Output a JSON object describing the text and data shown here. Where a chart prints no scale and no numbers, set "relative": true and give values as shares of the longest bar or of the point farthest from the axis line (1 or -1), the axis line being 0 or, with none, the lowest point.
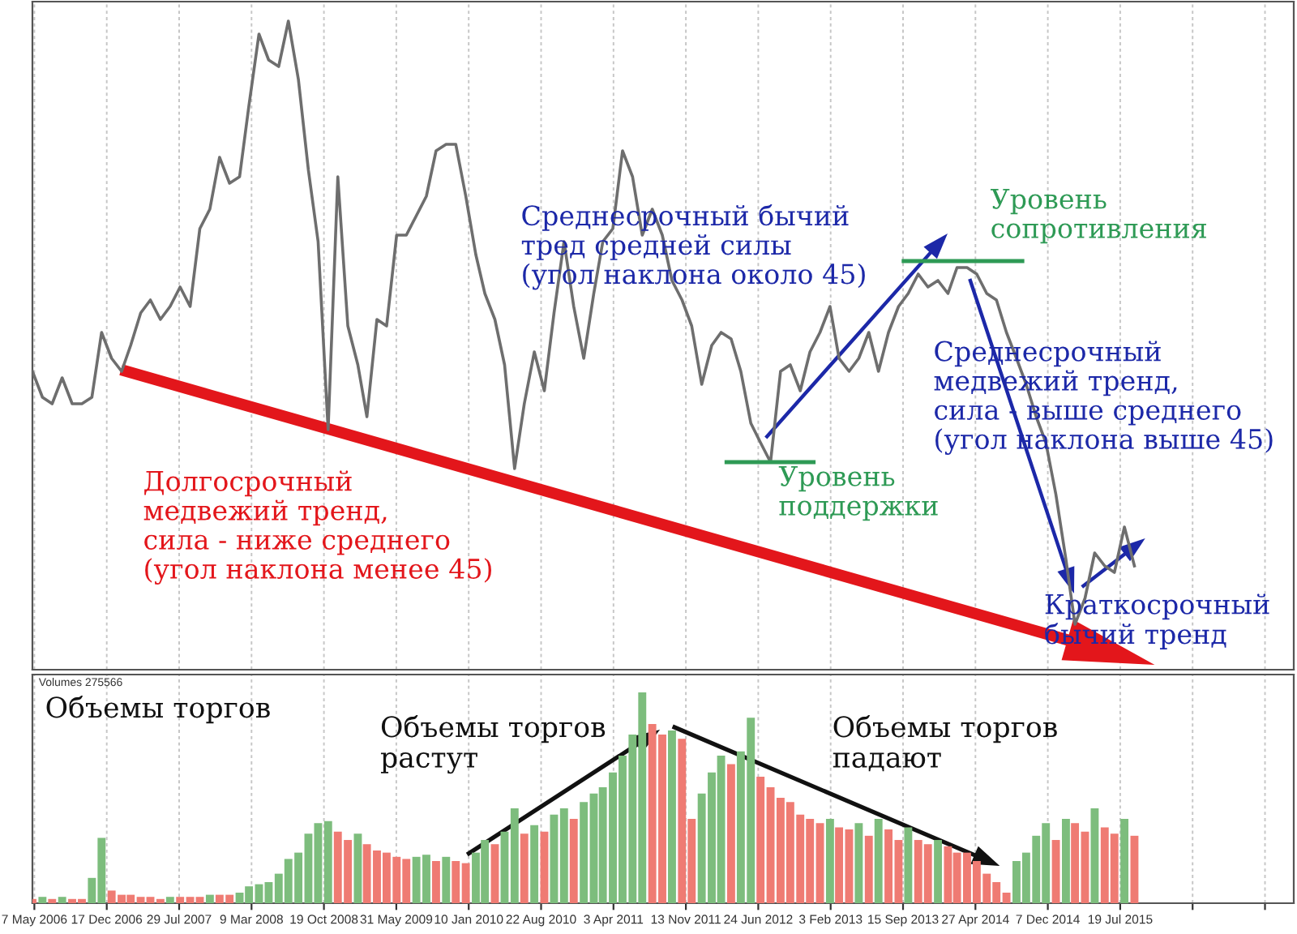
{
  "chart_data": [
    {
      "type": "line",
      "relative": true,
      "tick_labels": false,
      "grid": "x",
      "annotations": [
        "Долгосрочный\nмедвежий тренд,\nсила - ниже среднего\n(угол наклона менее 45)",
        "Среднесрочный бычий\nтред средней силы\n(угол наклона около 45)",
        "Среднесрочный\nмедвежий тренд,\nсила - выше среднего\n(угол наклона выше 45)",
        "Краткосрочный\nбычий тренд"
      ],
      "xlim": [
        "2006-05-01",
        "2017-01-06"
      ],
      "x": [
        "2006-05",
        "2006-06",
        "2006-07",
        "2006-08",
        "2006-09",
        "2006-10",
        "2006-11",
        "2006-12",
        "2007-01",
        "2007-02",
        "2007-03",
        "2007-04",
        "2007-05",
        "2007-06",
        "2007-07",
        "2007-08",
        "2007-09",
        "2007-10",
        "2007-11",
        "2007-12",
        "2008-01",
        "2008-02",
        "2008-03",
        "2008-04",
        "2008-05",
        "2008-06",
        "2008-07",
        "2008-08",
        "2008-09",
        "2008-10",
        "2008-11",
        "2008-12",
        "2009-01",
        "2009-02",
        "2009-03",
        "2009-04",
        "2009-05",
        "2009-06",
        "2009-07",
        "2009-08",
        "2009-09",
        "2009-10",
        "2009-11",
        "2009-12",
        "2010-01",
        "2010-02",
        "2010-03",
        "2010-04",
        "2010-05",
        "2010-06",
        "2010-07",
        "2010-08",
        "2010-09",
        "2010-10",
        "2010-11",
        "2010-12",
        "2011-01",
        "2011-02",
        "2011-03",
        "2011-04",
        "2011-05",
        "2011-06",
        "2011-07",
        "2011-08",
        "2011-09",
        "2011-10",
        "2011-11",
        "2011-12",
        "2012-01",
        "2012-02",
        "2012-03",
        "2012-04",
        "2012-05",
        "2012-06",
        "2012-07",
        "2012-08",
        "2012-09",
        "2012-10",
        "2012-11",
        "2012-12",
        "2013-01",
        "2013-02",
        "2013-03",
        "2013-04",
        "2013-05",
        "2013-06",
        "2013-07",
        "2013-08",
        "2013-09",
        "2013-10",
        "2013-11",
        "2013-12",
        "2014-01",
        "2014-02",
        "2014-03",
        "2014-04",
        "2014-05",
        "2014-06",
        "2014-07",
        "2014-08",
        "2014-09",
        "2014-10",
        "2014-11",
        "2014-12",
        "2015-01",
        "2015-02",
        "2015-03",
        "2015-04",
        "2015-05",
        "2015-06",
        "2015-07",
        "2015-08",
        "2015-09"
      ],
      "series": [
        {
          "color": "#6e6e6e",
          "values": [
            0.46,
            0.42,
            0.41,
            0.45,
            0.41,
            0.41,
            0.42,
            0.52,
            0.48,
            0.46,
            0.5,
            0.55,
            0.57,
            0.54,
            0.56,
            0.59,
            0.56,
            0.68,
            0.71,
            0.79,
            0.75,
            0.76,
            0.87,
            0.98,
            0.94,
            0.93,
            1.0,
            0.91,
            0.77,
            0.66,
            0.37,
            0.76,
            0.53,
            0.47,
            0.39,
            0.54,
            0.53,
            0.67,
            0.67,
            0.7,
            0.73,
            0.8,
            0.81,
            0.81,
            0.73,
            0.64,
            0.58,
            0.54,
            0.47,
            0.31,
            0.41,
            0.49,
            0.43,
            0.55,
            0.66,
            0.56,
            0.48,
            0.58,
            0.66,
            0.68,
            0.8,
            0.76,
            0.67,
            0.71,
            0.67,
            0.6,
            0.57,
            0.53,
            0.44,
            0.5,
            0.52,
            0.51,
            0.46,
            0.38,
            0.35,
            0.32,
            0.46,
            0.47,
            0.43,
            0.49,
            0.52,
            0.56,
            0.48,
            0.46,
            0.48,
            0.52,
            0.46,
            0.52,
            0.56,
            0.58,
            0.61,
            0.59,
            0.6,
            0.58,
            0.62,
            0.62,
            0.61,
            0.58,
            0.57,
            0.52,
            0.48,
            0.44,
            0.39,
            0.35,
            0.27,
            0.17,
            0.07,
            0.11,
            0.18,
            0.16,
            0.15,
            0.22,
            0.16
          ]
        },
        {
          "name": "Уровень\nподдержки",
          "color": "#2e9a55",
          "x": [
            "2012-03-18",
            "2012-12-12"
          ],
          "values": [
            0.32,
            0.32
          ]
        },
        {
          "name": "Уровень\nсопротивления",
          "color": "#2e9a55",
          "x": [
            "2013-09-17",
            "2014-09-19"
          ],
          "values": [
            0.63,
            0.63
          ]
        }
      ]
    },
    {
      "type": "bar",
      "relative": true,
      "tick_labels": "x",
      "grid": "x",
      "title": "Volumes 275566",
      "annotations": [
        "Объемы торгов",
        "Объемы торгов\nрастут",
        "Объемы торгов\nпадают"
      ],
      "xlim": [
        "2006-05-01",
        "2017-01-06"
      ],
      "xticks": [
        {
          "value": "2006-05-07",
          "label": "7 May 2006"
        },
        {
          "value": "2006-12-17",
          "label": "17 Dec 2006"
        },
        {
          "value": "2007-07-29",
          "label": "29 Jul 2007"
        },
        {
          "value": "2008-03-09",
          "label": "9 Mar 2008"
        },
        {
          "value": "2008-10-19",
          "label": "19 Oct 2008"
        },
        {
          "value": "2009-05-31",
          "label": "31 May 2009"
        },
        {
          "value": "2010-01-10",
          "label": "10 Jan 2010"
        },
        {
          "value": "2010-08-22",
          "label": "22 Aug 2010"
        },
        {
          "value": "2011-04-03",
          "label": "3 Apr 2011"
        },
        {
          "value": "2011-11-13",
          "label": "13 Nov 2011"
        },
        {
          "value": "2012-06-24",
          "label": "24 Jun 2012"
        },
        {
          "value": "2013-02-03",
          "label": "3 Feb 2013"
        },
        {
          "value": "2013-09-15",
          "label": "15 Sep 2013"
        },
        {
          "value": "2014-04-27",
          "label": "27 Apr 2014"
        },
        {
          "value": "2014-12-07",
          "label": "7 Dec 2014"
        },
        {
          "value": "2015-07-19",
          "label": "19 Jul 2015"
        },
        {
          "value": "2016-02-28",
          "label": null
        },
        {
          "value": "2016-10-09",
          "label": null
        }
      ],
      "x": [
        "2006-05",
        "2006-06",
        "2006-07",
        "2006-08",
        "2006-09",
        "2006-10",
        "2006-11",
        "2006-12",
        "2007-01",
        "2007-02",
        "2007-03",
        "2007-04",
        "2007-05",
        "2007-06",
        "2007-07",
        "2007-08",
        "2007-09",
        "2007-10",
        "2007-11",
        "2007-12",
        "2008-01",
        "2008-02",
        "2008-03",
        "2008-04",
        "2008-05",
        "2008-06",
        "2008-07",
        "2008-08",
        "2008-09",
        "2008-10",
        "2008-11",
        "2008-12",
        "2009-01",
        "2009-02",
        "2009-03",
        "2009-04",
        "2009-05",
        "2009-06",
        "2009-07",
        "2009-08",
        "2009-09",
        "2009-10",
        "2009-11",
        "2009-12",
        "2010-01",
        "2010-02",
        "2010-03",
        "2010-04",
        "2010-05",
        "2010-06",
        "2010-07",
        "2010-08",
        "2010-09",
        "2010-10",
        "2010-11",
        "2010-12",
        "2011-01",
        "2011-02",
        "2011-03",
        "2011-04",
        "2011-05",
        "2011-06",
        "2011-07",
        "2011-08",
        "2011-09",
        "2011-10",
        "2011-11",
        "2011-12",
        "2012-01",
        "2012-02",
        "2012-03",
        "2012-04",
        "2012-05",
        "2012-06",
        "2012-07",
        "2012-08",
        "2012-09",
        "2012-10",
        "2012-11",
        "2012-12",
        "2013-01",
        "2013-02",
        "2013-03",
        "2013-04",
        "2013-05",
        "2013-06",
        "2013-07",
        "2013-08",
        "2013-09",
        "2013-10",
        "2013-11",
        "2013-12",
        "2014-01",
        "2014-02",
        "2014-03",
        "2014-04",
        "2014-05",
        "2014-06",
        "2014-07",
        "2014-08",
        "2014-09",
        "2014-10",
        "2014-11",
        "2014-12",
        "2015-01",
        "2015-02",
        "2015-03",
        "2015-04",
        "2015-05",
        "2015-06",
        "2015-07",
        "2015-08",
        "2015-09"
      ],
      "values": [
        0.02,
        0.03,
        0.02,
        0.03,
        0.02,
        0.02,
        0.12,
        0.31,
        0.06,
        0.04,
        0.04,
        0.03,
        0.03,
        0.02,
        0.03,
        0.03,
        0.03,
        0.03,
        0.04,
        0.04,
        0.04,
        0.05,
        0.08,
        0.09,
        0.1,
        0.14,
        0.21,
        0.24,
        0.33,
        0.38,
        0.39,
        0.34,
        0.3,
        0.33,
        0.28,
        0.25,
        0.24,
        0.22,
        0.21,
        0.22,
        0.23,
        0.2,
        0.22,
        0.2,
        0.19,
        0.24,
        0.3,
        0.28,
        0.34,
        0.45,
        0.33,
        0.37,
        0.34,
        0.42,
        0.45,
        0.4,
        0.48,
        0.52,
        0.55,
        0.62,
        0.7,
        0.8,
        1.0,
        0.85,
        0.8,
        0.82,
        0.78,
        0.4,
        0.52,
        0.62,
        0.7,
        0.66,
        0.72,
        0.88,
        0.6,
        0.55,
        0.5,
        0.48,
        0.42,
        0.4,
        0.38,
        0.4,
        0.36,
        0.35,
        0.38,
        0.32,
        0.4,
        0.35,
        0.3,
        0.36,
        0.3,
        0.28,
        0.3,
        0.27,
        0.24,
        0.24,
        0.2,
        0.14,
        0.1,
        0.05,
        0.2,
        0.24,
        0.32,
        0.38,
        0.3,
        0.4,
        0.38,
        0.34,
        0.45,
        0.36,
        0.33,
        0.4,
        0.32
      ],
      "colors": [
        "#ef7b73",
        "#7dbd7d",
        "#ef7b73",
        "#7dbd7d",
        "#ef7b73",
        "#ef7b73",
        "#7dbd7d",
        "#7dbd7d",
        "#ef7b73",
        "#ef7b73",
        "#ef7b73",
        "#ef7b73",
        "#ef7b73",
        "#ef7b73",
        "#7dbd7d",
        "#ef7b73",
        "#ef7b73",
        "#ef7b73",
        "#7dbd7d",
        "#ef7b73",
        "#ef7b73",
        "#7dbd7d",
        "#7dbd7d",
        "#7dbd7d",
        "#7dbd7d",
        "#7dbd7d",
        "#7dbd7d",
        "#7dbd7d",
        "#7dbd7d",
        "#7dbd7d",
        "#7dbd7d",
        "#ef7b73",
        "#ef7b73",
        "#7dbd7d",
        "#ef7b73",
        "#ef7b73",
        "#ef7b73",
        "#ef7b73",
        "#ef7b73",
        "#7dbd7d",
        "#7dbd7d",
        "#ef7b73",
        "#7dbd7d",
        "#ef7b73",
        "#ef7b73",
        "#7dbd7d",
        "#7dbd7d",
        "#ef7b73",
        "#7dbd7d",
        "#7dbd7d",
        "#ef7b73",
        "#7dbd7d",
        "#ef7b73",
        "#7dbd7d",
        "#7dbd7d",
        "#ef7b73",
        "#7dbd7d",
        "#7dbd7d",
        "#7dbd7d",
        "#7dbd7d",
        "#7dbd7d",
        "#7dbd7d",
        "#7dbd7d",
        "#ef7b73",
        "#ef7b73",
        "#7dbd7d",
        "#ef7b73",
        "#ef7b73",
        "#7dbd7d",
        "#7dbd7d",
        "#7dbd7d",
        "#ef7b73",
        "#7dbd7d",
        "#7dbd7d",
        "#ef7b73",
        "#ef7b73",
        "#ef7b73",
        "#ef7b73",
        "#ef7b73",
        "#ef7b73",
        "#ef7b73",
        "#7dbd7d",
        "#ef7b73",
        "#ef7b73",
        "#7dbd7d",
        "#ef7b73",
        "#7dbd7d",
        "#ef7b73",
        "#ef7b73",
        "#7dbd7d",
        "#ef7b73",
        "#ef7b73",
        "#7dbd7d",
        "#ef7b73",
        "#ef7b73",
        "#ef7b73",
        "#ef7b73",
        "#ef7b73",
        "#ef7b73",
        "#ef7b73",
        "#7dbd7d",
        "#7dbd7d",
        "#7dbd7d",
        "#7dbd7d",
        "#ef7b73",
        "#7dbd7d",
        "#ef7b73",
        "#ef7b73",
        "#7dbd7d",
        "#ef7b73",
        "#ef7b73",
        "#7dbd7d",
        "#ef7b73"
      ]
    }
  ]
}
